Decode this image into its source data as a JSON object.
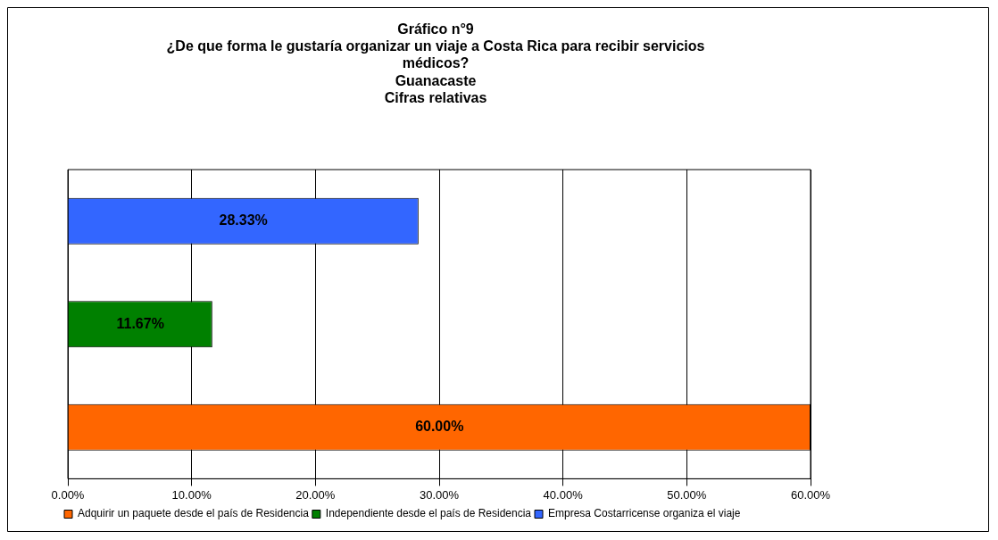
{
  "chart_data": {
    "type": "bar",
    "orientation": "horizontal",
    "title": "Gráfico n°9\n¿De que forma le gustaría organizar un viaje a Costa Rica para recibir servicios\nmédicos?\nGuanacaste\nCifras relativas",
    "categories": [
      null,
      null,
      null
    ],
    "series": [
      {
        "name": "Adquirir un paquete desde el país de Residencia",
        "color": "#ff6600",
        "values": [
          null,
          null,
          60.0
        ],
        "value_labels": [
          null,
          null,
          "60.00%"
        ]
      },
      {
        "name": "Independiente desde el país de Residencia",
        "color": "#008000",
        "values": [
          null,
          11.67,
          null
        ],
        "value_labels": [
          null,
          "11.67%",
          null
        ]
      },
      {
        "name": "Empresa Costarricense organiza el viaje",
        "color": "#3366ff",
        "values": [
          28.33,
          null,
          null
        ],
        "value_labels": [
          "28.33%",
          null,
          null
        ]
      }
    ],
    "xlim": [
      0,
      60
    ],
    "xticks": [
      {
        "value": 0,
        "label": "0.00%"
      },
      {
        "value": 10,
        "label": "10.00%"
      },
      {
        "value": 20,
        "label": "20.00%"
      },
      {
        "value": 30,
        "label": "30.00%"
      },
      {
        "value": 40,
        "label": "40.00%"
      },
      {
        "value": 50,
        "label": "50.00%"
      },
      {
        "value": 60,
        "label": "60.00%"
      }
    ],
    "grid": "x",
    "legend": "bottom"
  }
}
